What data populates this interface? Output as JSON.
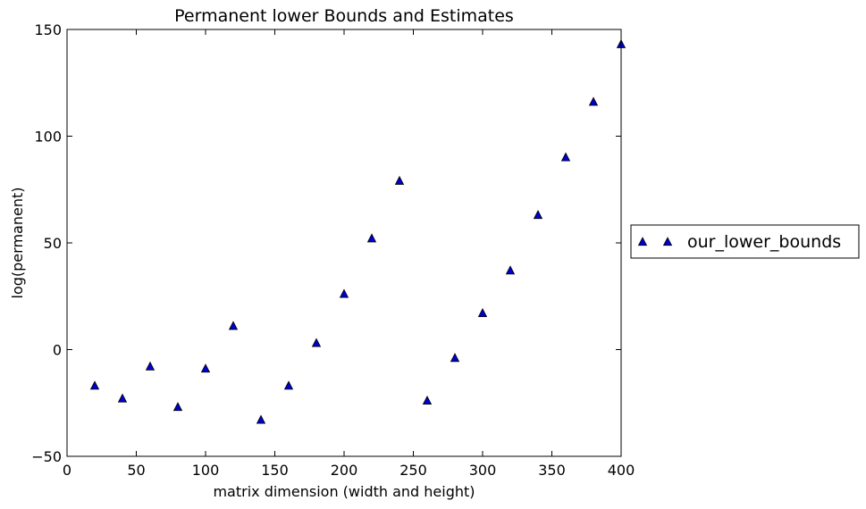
{
  "chart_data": {
    "type": "scatter",
    "title": "Permanent lower Bounds and Estimates",
    "xlabel": "matrix dimension (width and height)",
    "ylabel": "log(permanent)",
    "xlim": [
      0,
      400
    ],
    "ylim": [
      -50,
      150
    ],
    "xticks": [
      0,
      50,
      100,
      150,
      200,
      250,
      300,
      350,
      400
    ],
    "yticks": [
      -50,
      0,
      50,
      100,
      150
    ],
    "xtick_labels": [
      "0",
      "50",
      "100",
      "150",
      "200",
      "250",
      "300",
      "350",
      "400"
    ],
    "ytick_labels": [
      "−50",
      "0",
      "50",
      "100",
      "150"
    ],
    "grid": false,
    "legend_position": "outside-right",
    "series": [
      {
        "name": "our_lower_bounds",
        "marker": "triangle-up",
        "color": "#0000cc",
        "edge_color": "#000000",
        "x": [
          20,
          40,
          60,
          80,
          100,
          120,
          140,
          160,
          180,
          200,
          220,
          240,
          260,
          280,
          300,
          320,
          340,
          360,
          380,
          400
        ],
        "y": [
          -17,
          -23,
          -8,
          -27,
          -9,
          11,
          -33,
          -17,
          3,
          26,
          52,
          79,
          -24,
          -4,
          17,
          37,
          63,
          90,
          116,
          143
        ]
      }
    ]
  }
}
